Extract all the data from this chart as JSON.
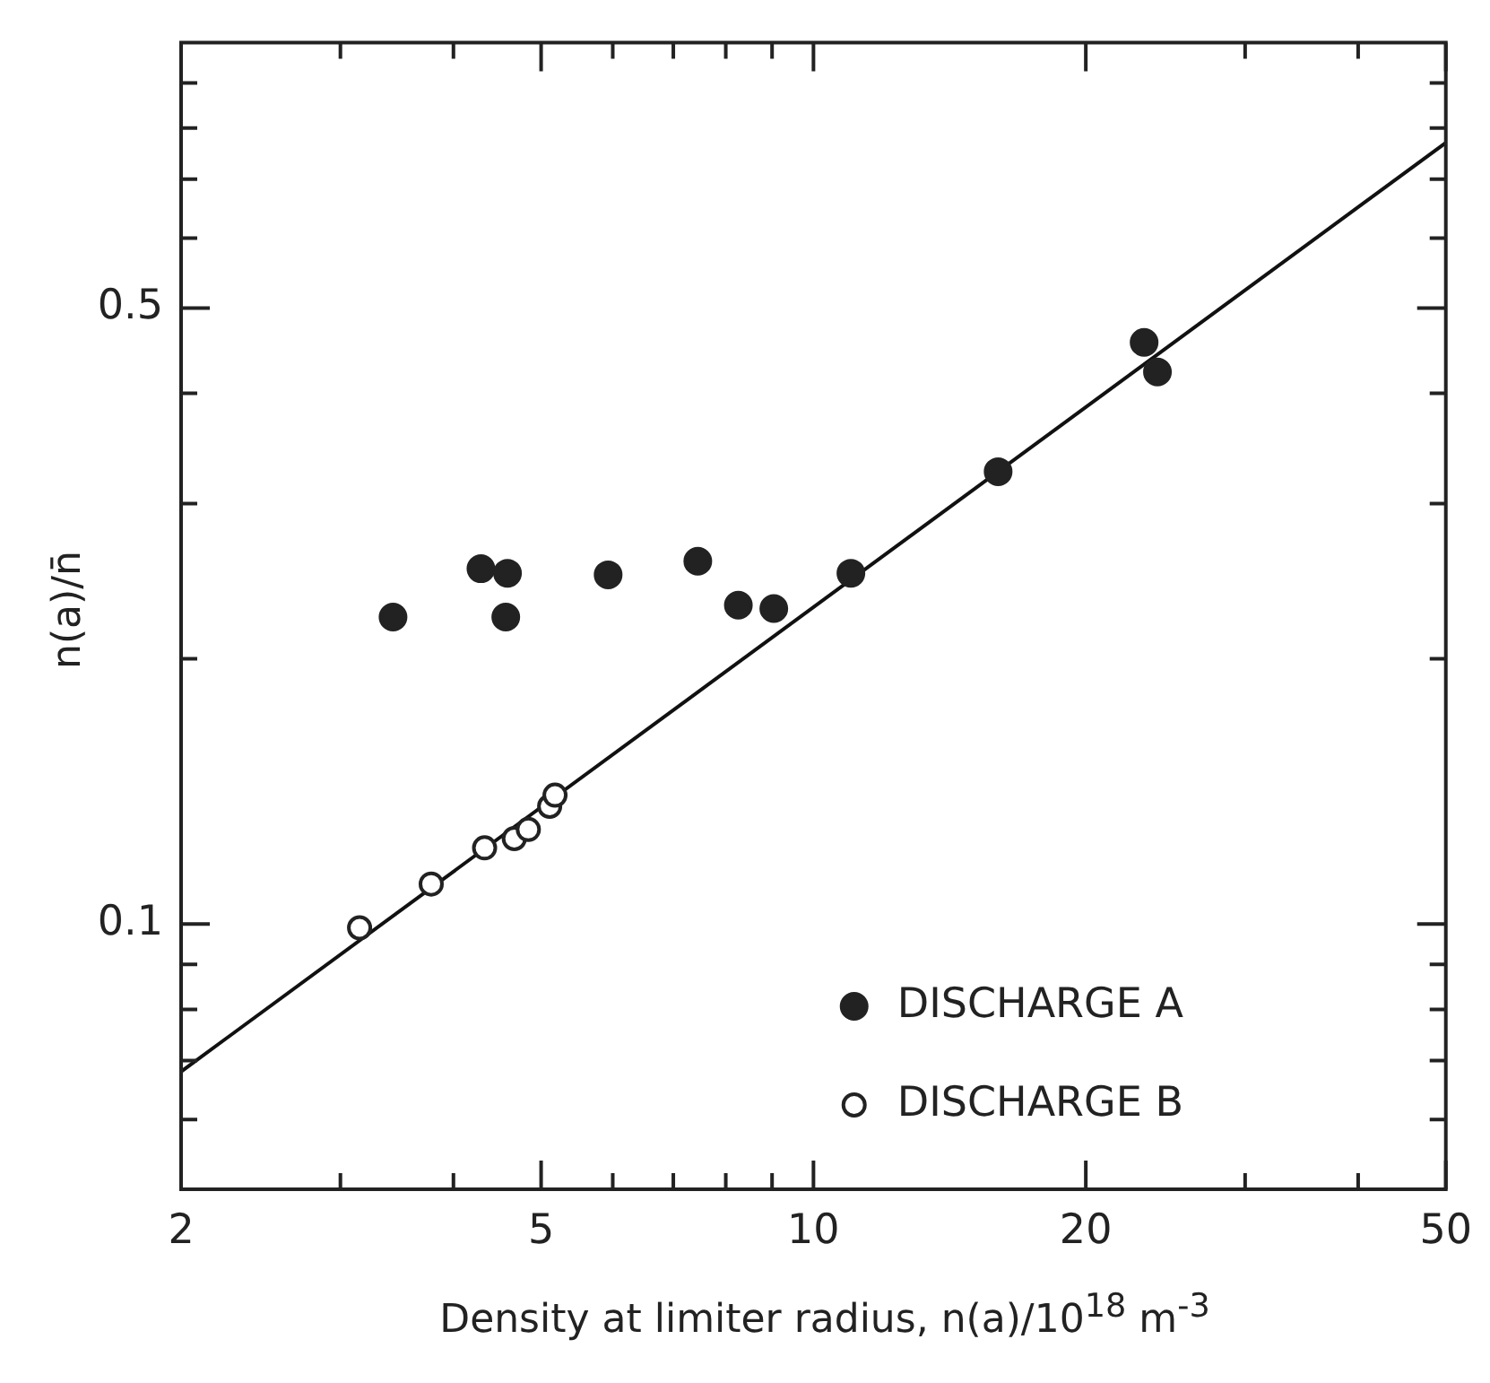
{
  "chart_data": {
    "type": "scatter",
    "xlabel": "Density at limiter radius, n(a)/10$^{18}$ m$^{-3}$",
    "ylabel": "n(a)/n̄",
    "log": "xy",
    "xlim": [
      2,
      50
    ],
    "ylim": [
      0.05,
      1
    ],
    "xticks": [
      2,
      {
        "value": 3,
        "label": null
      },
      {
        "value": 4,
        "label": null
      },
      5,
      {
        "value": 6,
        "label": null
      },
      {
        "value": 7,
        "label": null
      },
      {
        "value": 8,
        "label": null
      },
      {
        "value": 9,
        "label": null
      },
      10,
      20,
      {
        "value": 30,
        "label": null
      },
      {
        "value": 40,
        "label": null
      },
      50
    ],
    "yticks": [
      {
        "value": 0.06,
        "label": null
      },
      {
        "value": 0.07,
        "label": null
      },
      {
        "value": 0.08,
        "label": null
      },
      {
        "value": 0.09,
        "label": null
      },
      0.1,
      {
        "value": 0.2,
        "label": null
      },
      {
        "value": 0.3,
        "label": null
      },
      {
        "value": 0.4,
        "label": null
      },
      0.5,
      {
        "value": 0.6,
        "label": null
      },
      {
        "value": 0.7,
        "label": null
      },
      {
        "value": 0.8,
        "label": null
      },
      {
        "value": 0.9,
        "label": null
      }
    ],
    "grid": false,
    "legend": "bottom right",
    "series": [
      {
        "name": "DISCHARGE A",
        "color": "#222222",
        "marker": "circle",
        "x": [
          3.43,
          4.29,
          4.59,
          4.57,
          5.93,
          7.45,
          8.26,
          9.04,
          11.0,
          16.0,
          23.2,
          24.0
        ],
        "values": [
          0.223,
          0.253,
          0.25,
          0.223,
          0.249,
          0.258,
          0.23,
          0.228,
          0.25,
          0.326,
          0.457,
          0.423
        ]
      },
      {
        "name": "DISCHARGE B",
        "color": "#222222",
        "marker": "circle-open",
        "x": [
          3.15,
          3.78,
          4.33,
          4.67,
          4.84,
          5.11,
          5.18
        ],
        "values": [
          0.099,
          0.111,
          0.122,
          0.125,
          0.128,
          0.136,
          0.14
        ]
      },
      {
        "type": "line",
        "color": "#111111",
        "marker": "none",
        "line_style": "solid",
        "x": [
          2,
          50
        ],
        "values": [
          0.068,
          0.77
        ]
      }
    ]
  }
}
